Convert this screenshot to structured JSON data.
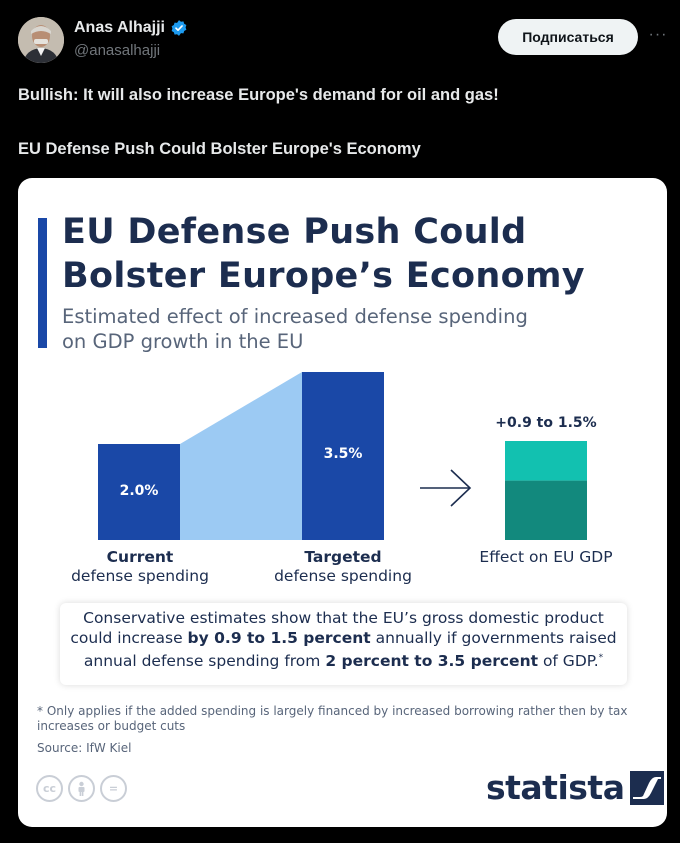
{
  "post": {
    "author": "Anas Alhajji",
    "handle": "@anasalhajji",
    "follow_label": "Подписаться",
    "more": "···",
    "text_line1": "Bullish: It will also increase Europe's demand for oil and gas!",
    "text_line2": "EU Defense Push Could Bolster Europe's Economy"
  },
  "infographic": {
    "title_line1": "EU Defense Push Could",
    "title_line2": "Bolster Europe’s Economy",
    "subtitle_line1": "Estimated effect of increased defense spending",
    "subtitle_line2": "on GDP growth in the EU",
    "callout": {
      "p1": "Conservative estimates show that the EU’s gross domestic product could increase ",
      "b1": "by 0.9 to 1.5 percent",
      "p2": " annually if governments raised annual defense spending from ",
      "b2": "2 percent to 3.5 percent",
      "p3": " of GDP.",
      "sup": "*"
    },
    "footnote": "* Only applies if the added spending is largely financed by increased borrowing rather then by tax increases or budget cuts",
    "source": "Source: IfW Kiel",
    "cc_icons": [
      "cc",
      "person",
      "="
    ],
    "brand": "statista"
  },
  "chart_data": {
    "type": "bar",
    "categories": [
      {
        "bold": "Current",
        "regular": "defense spending"
      },
      {
        "bold": "Targeted",
        "regular": "defense spending"
      }
    ],
    "values": [
      2.0,
      3.5
    ],
    "value_labels": [
      "2.0%",
      "3.5%"
    ],
    "effect": {
      "low": 0.9,
      "high": 1.5,
      "label": "+0.9 to 1.5%",
      "caption": "Effect on EU GDP"
    },
    "colors": {
      "bar": "#1a48a7",
      "connector": "#9ccaf3",
      "effect_high": "#12c1b0",
      "effect_low": "#12897d"
    }
  }
}
